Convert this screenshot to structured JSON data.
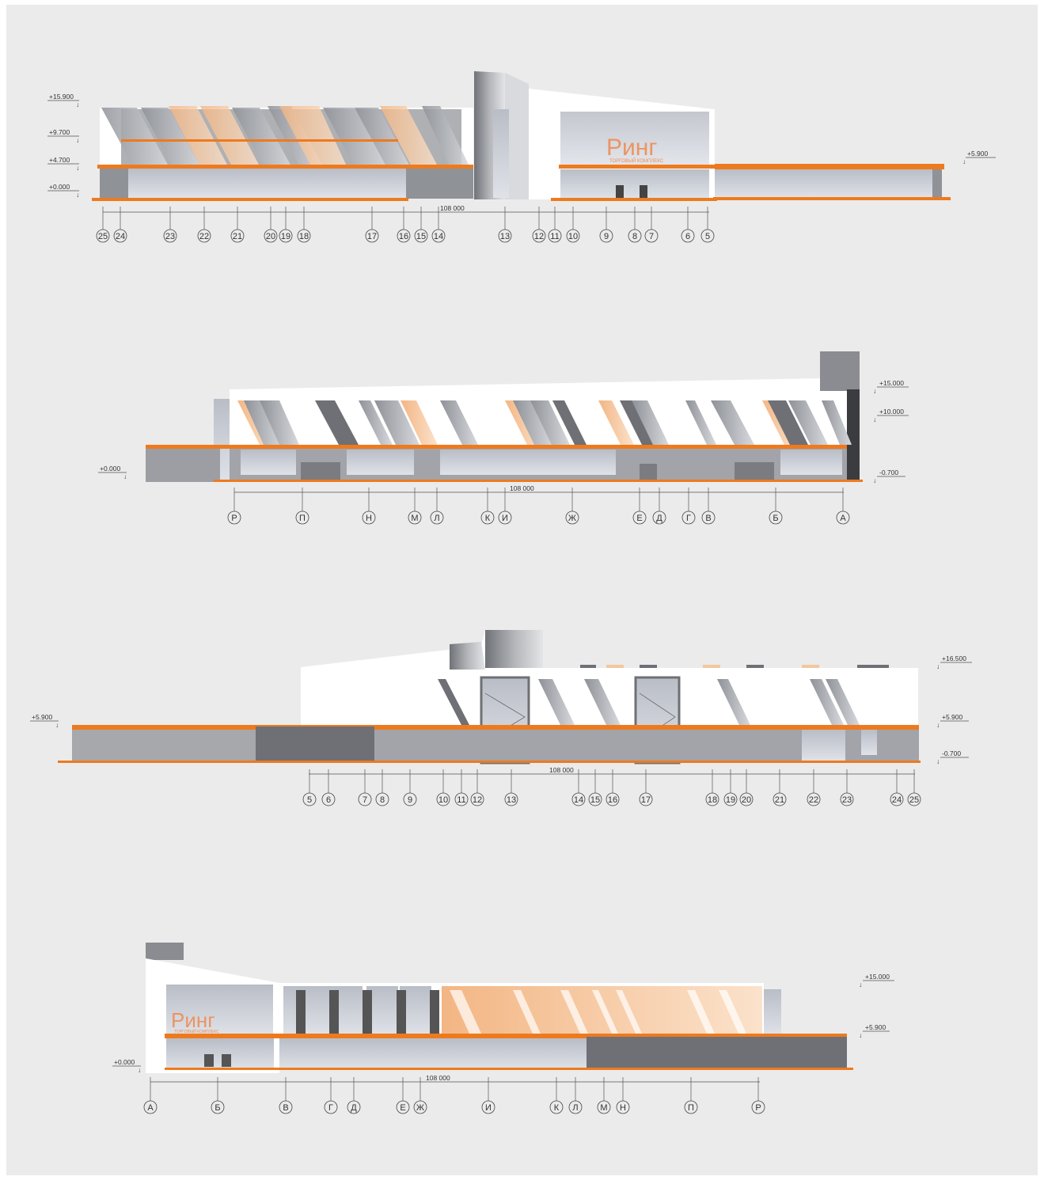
{
  "colors": {
    "background": "#ebebeb",
    "orange": "#ee7a1e",
    "dark_gray": "#7c7e83",
    "mid_gray": "#a7a9ad",
    "glass": "#c9ccd3",
    "white": "#ffffff"
  },
  "icons": [
    "level-mark-icon",
    "axis-bubble-icon"
  ],
  "elevations": [
    {
      "id": "elevation-1",
      "levels_left": [
        "+15.900",
        "+9.700",
        "+4.700",
        "+0.000"
      ],
      "levels_right": [
        "+5.900"
      ],
      "dimension": "108 000",
      "axes": [
        "25",
        "24",
        "23",
        "22",
        "21",
        "20",
        "19",
        "18",
        "17",
        "16",
        "15",
        "14",
        "13",
        "12",
        "11",
        "10",
        "9",
        "8",
        "7",
        "6",
        "5"
      ],
      "sign": "Ринг",
      "sign_sub": "ТОРГОВЫЙ КОМПЛЕКС"
    },
    {
      "id": "elevation-2",
      "levels_left": [
        "+0.000"
      ],
      "levels_right": [
        "+15.000",
        "+10.000",
        "-0.700"
      ],
      "dimension": "108 000",
      "axes": [
        "Р",
        "П",
        "Н",
        "М",
        "Л",
        "К",
        "И",
        "Ж",
        "Е",
        "Д",
        "Г",
        "В",
        "Б",
        "А"
      ]
    },
    {
      "id": "elevation-3",
      "levels_left": [
        "+5.900"
      ],
      "levels_right": [
        "+16.500",
        "+5.900",
        "-0.700"
      ],
      "dimension": "108 000",
      "axes": [
        "5",
        "6",
        "7",
        "8",
        "9",
        "10",
        "11",
        "12",
        "13",
        "14",
        "15",
        "16",
        "17",
        "18",
        "19",
        "20",
        "21",
        "22",
        "23",
        "24",
        "25"
      ]
    },
    {
      "id": "elevation-4",
      "levels_left": [
        "+0.000"
      ],
      "levels_right": [
        "+15.000",
        "+5.900"
      ],
      "dimension": "108 000",
      "axes": [
        "А",
        "Б",
        "В",
        "Г",
        "Д",
        "Е",
        "Ж",
        "И",
        "К",
        "Л",
        "М",
        "Н",
        "П",
        "Р"
      ],
      "sign": "Ринг",
      "sign_sub": "ТОРГОВЫЙ КОМПЛЕКС"
    }
  ]
}
